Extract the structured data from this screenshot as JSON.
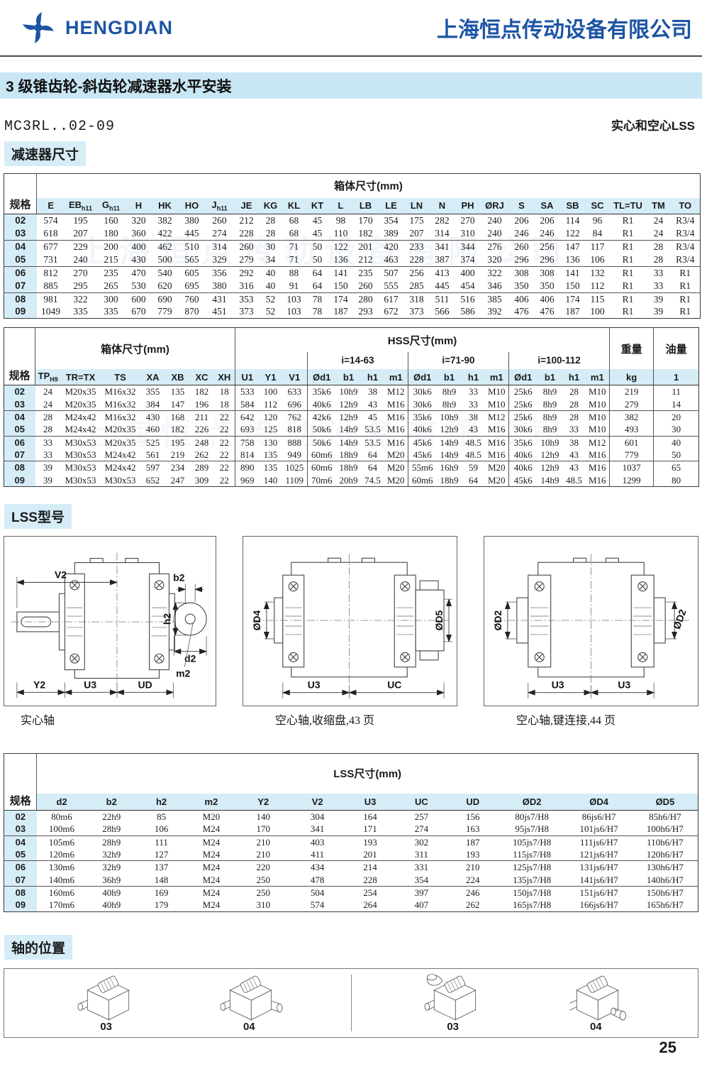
{
  "header": {
    "logo_text": "HENGDIAN",
    "company_name": "上海恒点传动设备有限公司"
  },
  "title_bar": "3 级锥齿轮-斜齿轮减速器水平安装",
  "model_line": {
    "model": "MC3RL..02-09",
    "shaft_note": "实心和空心LSS"
  },
  "sections": {
    "reducer_dims": "减速器尺寸",
    "lss_models": "LSS型号",
    "shaft_positions": "轴的位置"
  },
  "table1": {
    "spec_header": "规格",
    "group_header": "箱体尺寸(mm)",
    "columns": [
      "E",
      "EB|h11",
      "G|h11",
      "H",
      "HK",
      "HO",
      "J|h11",
      "JE",
      "KG",
      "KL",
      "KT",
      "L",
      "LB",
      "LE",
      "LN",
      "N",
      "PH",
      "ØRJ",
      "S",
      "SA",
      "SB",
      "SC",
      "TL=TU",
      "TM",
      "TO"
    ],
    "rows": [
      {
        "spec": "02",
        "values": [
          "574",
          "195",
          "160",
          "320",
          "382",
          "380",
          "260",
          "212",
          "28",
          "68",
          "45",
          "98",
          "170",
          "354",
          "175",
          "282",
          "270",
          "240",
          "206",
          "206",
          "114",
          "96",
          "R1",
          "24",
          "R3/4"
        ]
      },
      {
        "spec": "03",
        "values": [
          "618",
          "207",
          "180",
          "360",
          "422",
          "445",
          "274",
          "228",
          "28",
          "68",
          "45",
          "110",
          "182",
          "389",
          "207",
          "314",
          "310",
          "240",
          "246",
          "246",
          "122",
          "84",
          "R1",
          "24",
          "R3/4"
        ]
      },
      {
        "spec": "04",
        "values": [
          "677",
          "229",
          "200",
          "400",
          "462",
          "510",
          "314",
          "260",
          "30",
          "71",
          "50",
          "122",
          "201",
          "420",
          "233",
          "341",
          "344",
          "276",
          "260",
          "256",
          "147",
          "117",
          "R1",
          "28",
          "R3/4"
        ]
      },
      {
        "spec": "05",
        "values": [
          "731",
          "240",
          "215",
          "430",
          "500",
          "565",
          "329",
          "279",
          "34",
          "71",
          "50",
          "136",
          "212",
          "463",
          "228",
          "387",
          "374",
          "320",
          "296",
          "296",
          "136",
          "106",
          "R1",
          "28",
          "R3/4"
        ]
      },
      {
        "spec": "06",
        "values": [
          "812",
          "270",
          "235",
          "470",
          "540",
          "605",
          "356",
          "292",
          "40",
          "88",
          "64",
          "141",
          "235",
          "507",
          "256",
          "413",
          "400",
          "322",
          "308",
          "308",
          "141",
          "132",
          "R1",
          "33",
          "R1"
        ]
      },
      {
        "spec": "07",
        "values": [
          "885",
          "295",
          "265",
          "530",
          "620",
          "695",
          "380",
          "316",
          "40",
          "91",
          "64",
          "150",
          "260",
          "555",
          "285",
          "445",
          "454",
          "346",
          "350",
          "350",
          "150",
          "112",
          "R1",
          "33",
          "R1"
        ]
      },
      {
        "spec": "08",
        "values": [
          "981",
          "322",
          "300",
          "600",
          "690",
          "760",
          "431",
          "353",
          "52",
          "103",
          "78",
          "174",
          "280",
          "617",
          "318",
          "511",
          "516",
          "385",
          "406",
          "406",
          "174",
          "115",
          "R1",
          "39",
          "R1"
        ]
      },
      {
        "spec": "09",
        "values": [
          "1049",
          "335",
          "335",
          "670",
          "779",
          "870",
          "451",
          "373",
          "52",
          "103",
          "78",
          "187",
          "293",
          "672",
          "373",
          "566",
          "586",
          "392",
          "476",
          "476",
          "187",
          "100",
          "R1",
          "39",
          "R1"
        ]
      }
    ]
  },
  "table2": {
    "spec_header": "规格",
    "left_group": "箱体尺寸(mm)",
    "mid_group": "HSS尺寸(mm)",
    "weight_header": "重量",
    "oil_header": "油量",
    "i_groups": [
      "i=14-63",
      "i=71-90",
      "i=100-112"
    ],
    "columns": [
      "TP|H9",
      "TR=TX",
      "TS",
      "XA",
      "XB",
      "XC",
      "XH",
      "U1",
      "Y1",
      "V1",
      "Ød1",
      "b1",
      "h1",
      "m1",
      "Ød1",
      "b1",
      "h1",
      "m1",
      "Ød1",
      "b1",
      "h1",
      "m1",
      "kg",
      "1"
    ],
    "rows": [
      {
        "spec": "02",
        "values": [
          "24",
          "M20x35",
          "M16x32",
          "355",
          "135",
          "182",
          "18",
          "533",
          "100",
          "633",
          "35k6",
          "10h9",
          "38",
          "M12",
          "30k6",
          "8h9",
          "33",
          "M10",
          "25k6",
          "8h9",
          "28",
          "M10",
          "219",
          "11"
        ]
      },
      {
        "spec": "03",
        "values": [
          "24",
          "M20x35",
          "M16x32",
          "384",
          "147",
          "196",
          "18",
          "584",
          "112",
          "696",
          "40k6",
          "12h9",
          "43",
          "M16",
          "30k6",
          "8h9",
          "33",
          "M10",
          "25k6",
          "8h9",
          "28",
          "M10",
          "279",
          "14"
        ]
      },
      {
        "spec": "04",
        "values": [
          "28",
          "M24x42",
          "M16x32",
          "430",
          "168",
          "211",
          "22",
          "642",
          "120",
          "762",
          "42k6",
          "12h9",
          "45",
          "M16",
          "35k6",
          "10h9",
          "38",
          "M12",
          "25k6",
          "8h9",
          "28",
          "M10",
          "382",
          "20"
        ]
      },
      {
        "spec": "05",
        "values": [
          "28",
          "M24x42",
          "M20x35",
          "460",
          "182",
          "226",
          "22",
          "693",
          "125",
          "818",
          "50k6",
          "14h9",
          "53.5",
          "M16",
          "40k6",
          "12h9",
          "43",
          "M16",
          "30k6",
          "8h9",
          "33",
          "M10",
          "493",
          "30"
        ]
      },
      {
        "spec": "06",
        "values": [
          "33",
          "M30x53",
          "M20x35",
          "525",
          "195",
          "248",
          "22",
          "758",
          "130",
          "888",
          "50k6",
          "14h9",
          "53.5",
          "M16",
          "45k6",
          "14h9",
          "48.5",
          "M16",
          "35k6",
          "10h9",
          "38",
          "M12",
          "601",
          "40"
        ]
      },
      {
        "spec": "07",
        "values": [
          "33",
          "M30x53",
          "M24x42",
          "561",
          "219",
          "262",
          "22",
          "814",
          "135",
          "949",
          "60m6",
          "18h9",
          "64",
          "M20",
          "45k6",
          "14h9",
          "48.5",
          "M16",
          "40k6",
          "12h9",
          "43",
          "M16",
          "779",
          "50"
        ]
      },
      {
        "spec": "08",
        "values": [
          "39",
          "M30x53",
          "M24x42",
          "597",
          "234",
          "289",
          "22",
          "890",
          "135",
          "1025",
          "60m6",
          "18h9",
          "64",
          "M20",
          "55m6",
          "16h9",
          "59",
          "M20",
          "40k6",
          "12h9",
          "43",
          "M16",
          "1037",
          "65"
        ]
      },
      {
        "spec": "09",
        "values": [
          "39",
          "M30x53",
          "M30x53",
          "652",
          "247",
          "309",
          "22",
          "969",
          "140",
          "1109",
          "70m6",
          "20h9",
          "74.5",
          "M20",
          "60m6",
          "18h9",
          "64",
          "M20",
          "45k6",
          "14h9",
          "48.5",
          "M16",
          "1299",
          "80"
        ]
      }
    ]
  },
  "table3": {
    "spec_header": "规格",
    "group_header": "LSS尺寸(mm)",
    "columns": [
      "d2",
      "b2",
      "h2",
      "m2",
      "Y2",
      "V2",
      "U3",
      "UC",
      "UD",
      "ØD2",
      "ØD4",
      "ØD5"
    ],
    "rows": [
      {
        "spec": "02",
        "values": [
          "80m6",
          "22h9",
          "85",
          "M20",
          "140",
          "304",
          "164",
          "257",
          "156",
          "80js7/H8",
          "86js6/H7",
          "85h6/H7"
        ]
      },
      {
        "spec": "03",
        "values": [
          "100m6",
          "28h9",
          "106",
          "M24",
          "170",
          "341",
          "171",
          "274",
          "163",
          "95js7/H8",
          "101js6/H7",
          "100h6/H7"
        ]
      },
      {
        "spec": "04",
        "values": [
          "105m6",
          "28h9",
          "111",
          "M24",
          "210",
          "403",
          "193",
          "302",
          "187",
          "105js7/H8",
          "111js6/H7",
          "110h6/H7"
        ]
      },
      {
        "spec": "05",
        "values": [
          "120m6",
          "32h9",
          "127",
          "M24",
          "210",
          "411",
          "201",
          "311",
          "193",
          "115js7/H8",
          "121js6/H7",
          "120h6/H7"
        ]
      },
      {
        "spec": "06",
        "values": [
          "130m6",
          "32h9",
          "137",
          "M24",
          "220",
          "434",
          "214",
          "331",
          "210",
          "125js7/H8",
          "131js6/H7",
          "130h6/H7"
        ]
      },
      {
        "spec": "07",
        "values": [
          "140m6",
          "36h9",
          "148",
          "M24",
          "250",
          "478",
          "228",
          "354",
          "224",
          "135js7/H8",
          "141js6/H7",
          "140h6/H7"
        ]
      },
      {
        "spec": "08",
        "values": [
          "160m6",
          "40h9",
          "169",
          "M24",
          "250",
          "504",
          "254",
          "397",
          "246",
          "150js7/H8",
          "151js6/H7",
          "150h6/H7"
        ]
      },
      {
        "spec": "09",
        "values": [
          "170m6",
          "40h9",
          "179",
          "M24",
          "310",
          "574",
          "264",
          "407",
          "262",
          "165js7/H8",
          "166js6/H7",
          "165h6/H7"
        ]
      }
    ]
  },
  "drawings": {
    "solid": {
      "v2": "V2",
      "b2": "b2",
      "h2": "h2",
      "d2": "d2",
      "m2": "m2",
      "y2": "Y2",
      "u3": "U3",
      "ud": "UD",
      "caption": "实心轴"
    },
    "shrink": {
      "d4": "ØD4",
      "d5": "ØD5",
      "u3": "U3",
      "uc": "UC",
      "caption": "空心轴,收缩盘,43 页"
    },
    "keyed": {
      "d2l": "ØD2",
      "d2r": "ØD2",
      "u3l": "U3",
      "u3r": "U3",
      "caption": "空心轴,键连接,44 页"
    }
  },
  "positions": {
    "labels": [
      "03",
      "04",
      "03",
      "04"
    ]
  },
  "page_number": "25"
}
